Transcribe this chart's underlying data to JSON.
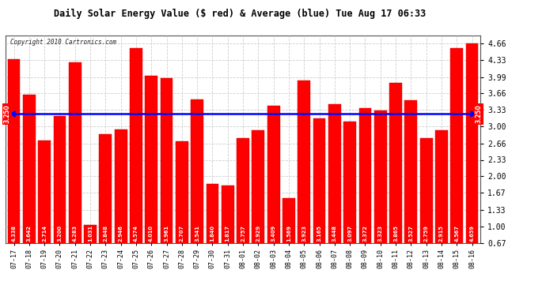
{
  "title": "Daily Solar Energy Value ($ red) & Average (blue) Tue Aug 17 06:33",
  "copyright": "Copyright 2010 Cartronics.com",
  "average": 3.25,
  "bar_color": "#ff0000",
  "average_color": "#0000ff",
  "background_color": "#ffffff",
  "grid_color": "#c8c8c8",
  "ylim": [
    0.67,
    4.82
  ],
  "yticks": [
    0.67,
    1.0,
    1.33,
    1.67,
    2.0,
    2.33,
    2.66,
    3.0,
    3.33,
    3.66,
    3.99,
    4.33,
    4.66
  ],
  "categories": [
    "07-17",
    "07-18",
    "07-19",
    "07-20",
    "07-21",
    "07-22",
    "07-23",
    "07-24",
    "07-25",
    "07-26",
    "07-27",
    "07-28",
    "07-29",
    "07-30",
    "07-31",
    "08-01",
    "08-02",
    "08-03",
    "08-04",
    "08-05",
    "08-06",
    "08-07",
    "08-08",
    "08-09",
    "08-10",
    "08-11",
    "08-12",
    "08-13",
    "08-14",
    "08-15",
    "08-16"
  ],
  "values": [
    4.338,
    3.642,
    2.714,
    3.2,
    4.283,
    1.031,
    2.848,
    2.946,
    4.574,
    4.01,
    3.961,
    2.707,
    3.541,
    1.84,
    1.817,
    2.757,
    2.929,
    3.409,
    1.569,
    3.923,
    3.165,
    3.448,
    3.097,
    3.372,
    3.323,
    3.865,
    3.527,
    2.759,
    2.915,
    4.567,
    4.659
  ]
}
